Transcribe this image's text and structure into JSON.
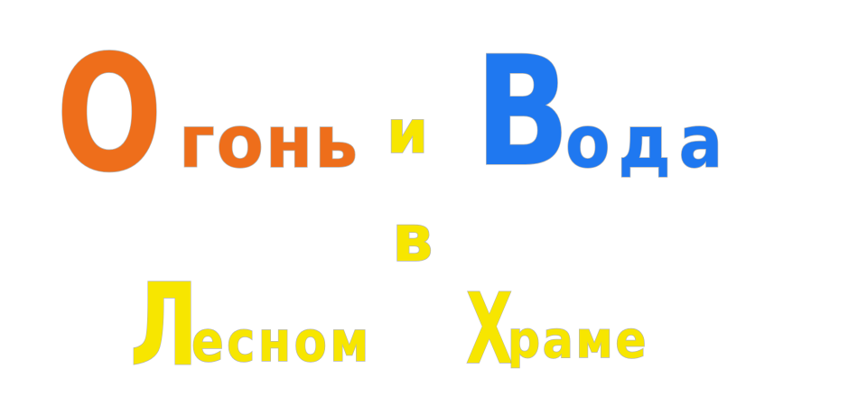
{
  "title": {
    "line1": {
      "fire_first": "О",
      "fire_rest": "гонь",
      "and": "и",
      "water_first": "В",
      "water_rest": "ода"
    },
    "line2": {
      "in": "в"
    },
    "line3": {
      "forest_first": "Л",
      "forest_rest": "есном",
      "temple_first": "Х",
      "temple_rest": "раме"
    }
  },
  "colors": {
    "fire": "#ee6e1b",
    "water": "#1f78f0",
    "yellow": "#f7e600",
    "background": "#ffffff"
  }
}
